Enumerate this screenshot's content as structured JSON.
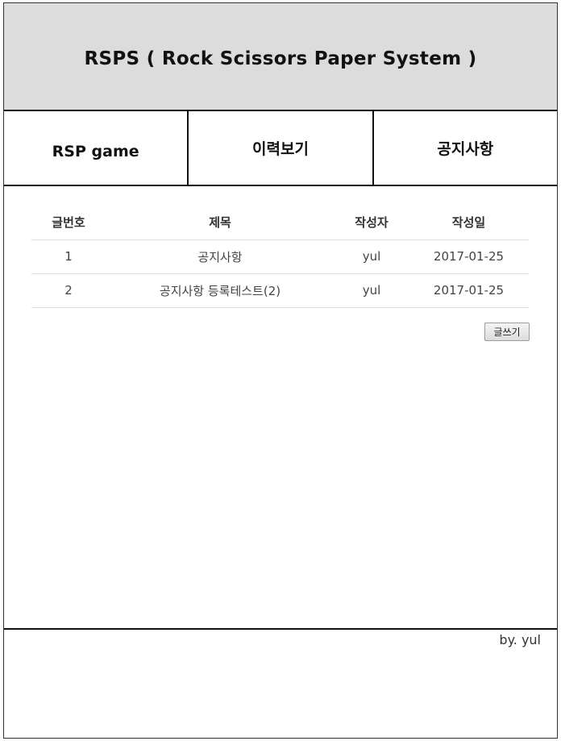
{
  "header": {
    "title": "RSPS ( Rock Scissors Paper System )"
  },
  "nav": {
    "items": [
      {
        "label": "RSP game"
      },
      {
        "label": "이력보기"
      },
      {
        "label": "공지사항"
      }
    ]
  },
  "board": {
    "columns": [
      "글번호",
      "제목",
      "작성자",
      "작성일"
    ],
    "rows": [
      {
        "no": "1",
        "title": "공지사항",
        "author": "yul",
        "date": "2017-01-25"
      },
      {
        "no": "2",
        "title": "공지사항 등록테스트(2)",
        "author": "yul",
        "date": "2017-01-25"
      }
    ],
    "write_label": "글쓰기"
  },
  "footer": {
    "credit": "by. yul"
  }
}
